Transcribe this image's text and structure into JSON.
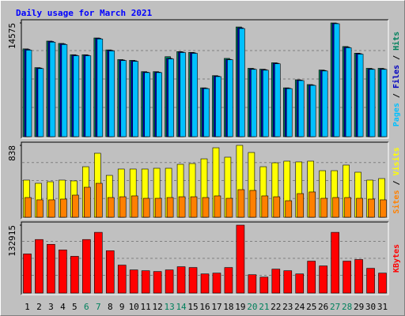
{
  "title": "Daily usage for March 2021",
  "chart_data": [
    {
      "type": "bar",
      "ylim": [
        0,
        14575
      ],
      "yticks": [
        14575
      ],
      "series": [
        {
          "name": "Hits",
          "color": "#00805c",
          "values": [
            11250,
            8850,
            12250,
            11950,
            10500,
            10500,
            12650,
            11120,
            9880,
            9780,
            8330,
            8330,
            10250,
            10900,
            10800,
            6260,
            7820,
            10030,
            14060,
            8760,
            8650,
            9470,
            6260,
            7290,
            6680,
            8540,
            14575,
            11550,
            10700,
            8760,
            8760
          ]
        },
        {
          "name": "Files",
          "color": "#0000c0",
          "values": [
            11180,
            8790,
            12200,
            11890,
            10440,
            10440,
            12600,
            11060,
            9820,
            9720,
            8270,
            8270,
            10030,
            10840,
            10740,
            6210,
            7760,
            9900,
            13950,
            8690,
            8590,
            9410,
            6210,
            7240,
            6620,
            8480,
            14520,
            11470,
            10640,
            8690,
            8690
          ]
        },
        {
          "name": "Pages",
          "color": "#00c0ff",
          "values": [
            11085,
            8724,
            12112,
            11804,
            10367,
            10367,
            12522,
            10983,
            9751,
            9648,
            8211,
            8211,
            9956,
            10777,
            10675,
            6158,
            7698,
            9854,
            13857,
            8622,
            8519,
            9340,
            6158,
            7185,
            6569,
            8417,
            14473,
            11393,
            10572,
            8622,
            8622
          ]
        }
      ]
    },
    {
      "type": "bar",
      "ylim": [
        0,
        838
      ],
      "yticks": [
        838
      ],
      "series": [
        {
          "name": "Visits",
          "color": "#ffff00",
          "values": [
            433,
            396,
            414,
            433,
            424,
            589,
            746,
            488,
            562,
            562,
            562,
            571,
            571,
            617,
            626,
            681,
            810,
            700,
            838,
            755,
            589,
            635,
            654,
            645,
            654,
            543,
            543,
            608,
            525,
            433,
            451
          ]
        },
        {
          "name": "Sites",
          "color": "#ff8000",
          "values": [
            230,
            203,
            203,
            212,
            258,
            350,
            396,
            230,
            239,
            249,
            221,
            221,
            230,
            239,
            239,
            230,
            249,
            221,
            322,
            313,
            249,
            239,
            193,
            276,
            295,
            221,
            230,
            230,
            221,
            212,
            203
          ]
        }
      ]
    },
    {
      "type": "bar",
      "ylim": [
        0,
        132915
      ],
      "yticks": [
        132915
      ],
      "categories": [
        "1",
        "2",
        "3",
        "4",
        "5",
        "6",
        "7",
        "8",
        "9",
        "10",
        "11",
        "12",
        "13",
        "14",
        "15",
        "16",
        "17",
        "18",
        "19",
        "20",
        "21",
        "22",
        "23",
        "24",
        "25",
        "26",
        "27",
        "28",
        "29",
        "30",
        "31"
      ],
      "category_colors": [
        "#000000",
        "#000000",
        "#000000",
        "#000000",
        "#000000",
        "#00805c",
        "#00805c",
        "#000000",
        "#000000",
        "#000000",
        "#000000",
        "#000000",
        "#00805c",
        "#00805c",
        "#000000",
        "#000000",
        "#000000",
        "#000000",
        "#000000",
        "#00805c",
        "#00805c",
        "#000000",
        "#000000",
        "#000000",
        "#000000",
        "#000000",
        "#00805c",
        "#00805c",
        "#000000",
        "#000000",
        "#000000"
      ],
      "series": [
        {
          "name": "KBytes",
          "color": "#ff0000",
          "values": [
            76621,
            104768,
            95386,
            84440,
            71930,
            104768,
            118841,
            82876,
            54730,
            45347,
            43784,
            42220,
            45347,
            51602,
            50038,
            37529,
            39093,
            50038,
            132915,
            35965,
            31274,
            46911,
            43784,
            37529,
            62548,
            53166,
            118841,
            62548,
            65675,
            48475,
            39093
          ]
        }
      ]
    }
  ]
}
